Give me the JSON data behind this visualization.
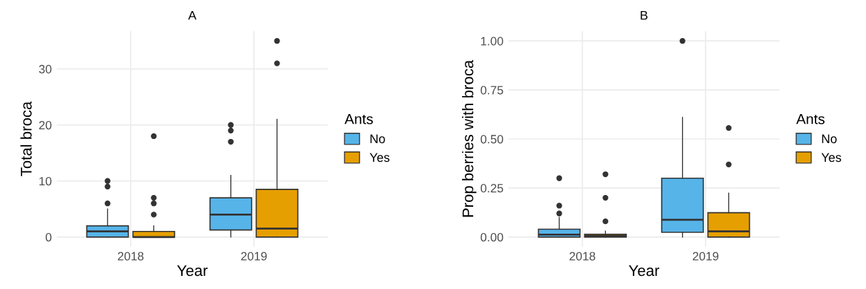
{
  "chart_data": [
    {
      "type": "box",
      "title": "A",
      "xlabel": "Year",
      "ylabel": "Total broca",
      "legend_title": "Ants",
      "legend": "right",
      "grid": true,
      "categories": [
        "2018",
        "2019"
      ],
      "ylim": [
        -1.75,
        36.75
      ],
      "yticks": [
        0,
        10,
        20,
        30
      ],
      "series": [
        {
          "name": "No",
          "color": "#56b4e9",
          "boxes": [
            {
              "low": 0,
              "q1": 0,
              "median": 1,
              "q3": 2,
              "high": 5,
              "outliers": [
                6,
                9,
                10
              ]
            },
            {
              "low": 0,
              "q1": 1.25,
              "median": 4,
              "q3": 7,
              "high": 11,
              "outliers": [
                17,
                19,
                20
              ]
            }
          ]
        },
        {
          "name": "Yes",
          "color": "#e69f00",
          "boxes": [
            {
              "low": 0,
              "q1": 0,
              "median": 0,
              "q3": 1,
              "high": 2,
              "outliers": [
                4,
                6,
                7,
                18
              ]
            },
            {
              "low": 0,
              "q1": 0,
              "median": 1.5,
              "q3": 8.5,
              "high": 21,
              "outliers": [
                31,
                35
              ]
            }
          ]
        }
      ]
    },
    {
      "type": "box",
      "title": "B",
      "xlabel": "Year",
      "ylabel": "Prop berries with broca",
      "legend_title": "Ants",
      "legend": "right",
      "grid": true,
      "categories": [
        "2018",
        "2019"
      ],
      "ylim": [
        -0.05,
        1.05
      ],
      "yticks": [
        {
          "value": 0,
          "label": "0.00"
        },
        {
          "value": 0.25,
          "label": "0.25"
        },
        {
          "value": 0.5,
          "label": "0.50"
        },
        {
          "value": 0.75,
          "label": "0.75"
        },
        {
          "value": 1,
          "label": "1.00"
        }
      ],
      "series": [
        {
          "name": "No",
          "color": "#56b4e9",
          "boxes": [
            {
              "low": 0,
              "q1": 0,
              "median": 0.012,
              "q3": 0.04,
              "high": 0.1,
              "outliers": [
                0.12,
                0.16,
                0.3
              ]
            },
            {
              "low": 0,
              "q1": 0.024,
              "median": 0.088,
              "q3": 0.3,
              "high": 0.61,
              "outliers": [
                1.0
              ]
            }
          ]
        },
        {
          "name": "Yes",
          "color": "#e69f00",
          "boxes": [
            {
              "low": 0,
              "q1": 0,
              "median": 0.005,
              "q3": 0.014,
              "high": 0.03,
              "outliers": [
                0.08,
                0.2,
                0.32
              ]
            },
            {
              "low": 0,
              "q1": 0,
              "median": 0.029,
              "q3": 0.124,
              "high": 0.224,
              "outliers": [
                0.37,
                0.556
              ]
            }
          ]
        }
      ]
    }
  ]
}
